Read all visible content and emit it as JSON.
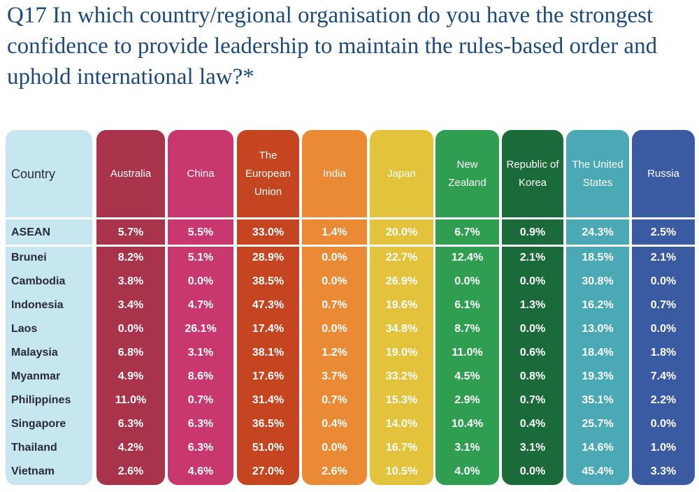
{
  "header": {
    "title": "Q17 In which country/regional organisation do you have the strongest confidence to provide leadership to maintain the rules-based order and uphold international law?*"
  },
  "table": {
    "columns": [
      "Country",
      "Australia",
      "China",
      "The European Union",
      "India",
      "Japan",
      "New Zealand",
      "Republic of Korea",
      "The United States",
      "Russia"
    ],
    "rows": [
      [
        "ASEAN",
        "5.7%",
        "5.5%",
        "33.0%",
        "1.4%",
        "20.0%",
        "6.7%",
        "0.9%",
        "24.3%",
        "2.5%"
      ],
      [
        "Brunei",
        "8.2%",
        "5.1%",
        "28.9%",
        "0.0%",
        "22.7%",
        "12.4%",
        "2.1%",
        "18.5%",
        "2.1%"
      ],
      [
        "Cambodia",
        "3.8%",
        "0.0%",
        "38.5%",
        "0.0%",
        "26.9%",
        "0.0%",
        "0.0%",
        "30.8%",
        "0.0%"
      ],
      [
        "Indonesia",
        "3.4%",
        "4.7%",
        "47.3%",
        "0.7%",
        "19.6%",
        "6.1%",
        "1.3%",
        "16.2%",
        "0.7%"
      ],
      [
        "Laos",
        "0.0%",
        "26.1%",
        "17.4%",
        "0.0%",
        "34.8%",
        "8.7%",
        "0.0%",
        "13.0%",
        "0.0%"
      ],
      [
        "Malaysia",
        "6.8%",
        "3.1%",
        "38.1%",
        "1.2%",
        "19.0%",
        "11.0%",
        "0.6%",
        "18.4%",
        "1.8%"
      ],
      [
        "Myanmar",
        "4.9%",
        "8.6%",
        "17.6%",
        "3.7%",
        "33.2%",
        "4.5%",
        "0.8%",
        "19.3%",
        "7.4%"
      ],
      [
        "Philippines",
        "11.0%",
        "0.7%",
        "31.4%",
        "0.7%",
        "15.3%",
        "2.9%",
        "0.7%",
        "35.1%",
        "2.2%"
      ],
      [
        "Singapore",
        "6.3%",
        "6.3%",
        "36.5%",
        "0.4%",
        "14.0%",
        "10.4%",
        "0.4%",
        "25.7%",
        "0.0%"
      ],
      [
        "Thailand",
        "4.2%",
        "6.3%",
        "51.0%",
        "0.0%",
        "16.7%",
        "3.1%",
        "3.1%",
        "14.6%",
        "1.0%"
      ],
      [
        "Vietnam",
        "2.6%",
        "4.6%",
        "27.0%",
        "2.6%",
        "10.5%",
        "4.0%",
        "0.0%",
        "45.4%",
        "3.3%"
      ]
    ]
  }
}
